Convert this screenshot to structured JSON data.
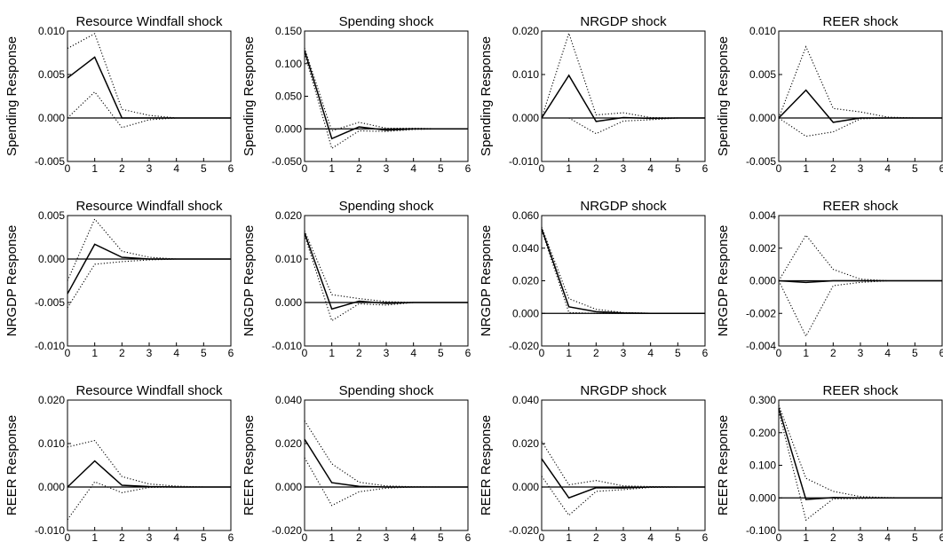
{
  "chart_data": [
    {
      "type": "line",
      "title": "Resource Windfall shock",
      "ylabel": "Spending Response",
      "xlim": [
        0,
        6
      ],
      "ylim": [
        -0.005,
        0.01
      ],
      "xticks": [
        "0",
        "1",
        "2",
        "3",
        "4",
        "5",
        "6"
      ],
      "yticks": [
        {
          "v": -0.005,
          "t": "-0.005"
        },
        {
          "v": 0,
          "t": "0.000"
        },
        {
          "v": 0.005,
          "t": "0.005"
        },
        {
          "v": 0.01,
          "t": "0.010"
        }
      ],
      "x": [
        0,
        1,
        2,
        3,
        4,
        5,
        6
      ],
      "series": [
        {
          "style": "solid",
          "values": [
            0.0046,
            0.007,
            0.0,
            0.0,
            0.0,
            0.0,
            0.0
          ]
        },
        {
          "style": "dotted",
          "values": [
            0.008,
            0.0097,
            0.001,
            0.0003,
            0.0,
            0.0,
            0.0
          ]
        },
        {
          "style": "dotted",
          "values": [
            0.0,
            0.003,
            -0.0011,
            -0.0002,
            0.0,
            0.0,
            0.0
          ]
        }
      ]
    },
    {
      "type": "line",
      "title": "Spending shock",
      "ylabel": "Spending Response",
      "xlim": [
        0,
        6
      ],
      "ylim": [
        -0.05,
        0.15
      ],
      "xticks": [
        "0",
        "1",
        "2",
        "3",
        "4",
        "5",
        "6"
      ],
      "yticks": [
        {
          "v": -0.05,
          "t": "-0.050"
        },
        {
          "v": 0,
          "t": "0.000"
        },
        {
          "v": 0.05,
          "t": "0.050"
        },
        {
          "v": 0.1,
          "t": "0.100"
        },
        {
          "v": 0.15,
          "t": "0.150"
        }
      ],
      "x": [
        0,
        1,
        2,
        3,
        4,
        5,
        6
      ],
      "series": [
        {
          "style": "solid",
          "values": [
            0.12,
            -0.015,
            0.003,
            -0.002,
            0.0,
            0.0,
            0.0
          ]
        },
        {
          "style": "dotted",
          "values": [
            0.124,
            -0.003,
            0.01,
            0.001,
            0.001,
            0.0,
            0.0
          ]
        },
        {
          "style": "dotted",
          "values": [
            0.116,
            -0.03,
            -0.003,
            -0.004,
            -0.001,
            0.0,
            0.0
          ]
        }
      ]
    },
    {
      "type": "line",
      "title": "NRGDP shock",
      "ylabel": "Spending Response",
      "xlim": [
        0,
        6
      ],
      "ylim": [
        -0.01,
        0.02
      ],
      "xticks": [
        "0",
        "1",
        "2",
        "3",
        "4",
        "5",
        "6"
      ],
      "yticks": [
        {
          "v": -0.01,
          "t": "-0.010"
        },
        {
          "v": 0,
          "t": "0.000"
        },
        {
          "v": 0.01,
          "t": "0.010"
        },
        {
          "v": 0.02,
          "t": "0.020"
        }
      ],
      "x": [
        0,
        1,
        2,
        3,
        4,
        5,
        6
      ],
      "series": [
        {
          "style": "solid",
          "values": [
            0.0,
            0.0098,
            -0.0008,
            0.0001,
            -0.0001,
            0.0,
            0.0
          ]
        },
        {
          "style": "dotted",
          "values": [
            0.0,
            0.0195,
            0.0007,
            0.0012,
            0.0001,
            0.0,
            0.0
          ]
        },
        {
          "style": "dotted",
          "values": [
            0.0,
            0.0,
            -0.0036,
            -0.0007,
            -0.0004,
            0.0,
            0.0
          ]
        }
      ]
    },
    {
      "type": "line",
      "title": "REER shock",
      "ylabel": "Spending Response",
      "xlim": [
        0,
        6
      ],
      "ylim": [
        -0.005,
        0.01
      ],
      "xticks": [
        "0",
        "1",
        "2",
        "3",
        "4",
        "5",
        "6"
      ],
      "yticks": [
        {
          "v": -0.005,
          "t": "-0.005"
        },
        {
          "v": 0,
          "t": "0.000"
        },
        {
          "v": 0.005,
          "t": "0.005"
        },
        {
          "v": 0.01,
          "t": "0.010"
        }
      ],
      "x": [
        0,
        1,
        2,
        3,
        4,
        5,
        6
      ],
      "series": [
        {
          "style": "solid",
          "values": [
            0.0,
            0.0032,
            -0.0005,
            0.0,
            0.0,
            0.0,
            0.0
          ]
        },
        {
          "style": "dotted",
          "values": [
            0.0,
            0.0082,
            0.0011,
            0.0007,
            0.0001,
            0.0,
            0.0
          ]
        },
        {
          "style": "dotted",
          "values": [
            0.0,
            -0.0021,
            -0.0016,
            -0.0001,
            0.0,
            0.0,
            0.0
          ]
        }
      ]
    },
    {
      "type": "line",
      "title": "Resource Windfall shock",
      "ylabel": "NRGDP Response",
      "xlim": [
        0,
        6
      ],
      "ylim": [
        -0.01,
        0.005
      ],
      "xticks": [
        "0",
        "1",
        "2",
        "3",
        "4",
        "5",
        "6"
      ],
      "yticks": [
        {
          "v": -0.01,
          "t": "-0.010"
        },
        {
          "v": -0.005,
          "t": "-0.005"
        },
        {
          "v": 0,
          "t": "0.000"
        },
        {
          "v": 0.005,
          "t": "0.005"
        }
      ],
      "x": [
        0,
        1,
        2,
        3,
        4,
        5,
        6
      ],
      "series": [
        {
          "style": "solid",
          "values": [
            -0.004,
            0.0017,
            0.0002,
            0.0,
            0.0,
            0.0,
            0.0
          ]
        },
        {
          "style": "dotted",
          "values": [
            -0.0025,
            0.0046,
            0.0009,
            0.0002,
            0.0,
            0.0,
            0.0
          ]
        },
        {
          "style": "dotted",
          "values": [
            -0.0056,
            -0.0006,
            -0.0003,
            -0.0001,
            0.0,
            0.0,
            0.0
          ]
        }
      ]
    },
    {
      "type": "line",
      "title": "Spending shock",
      "ylabel": "NRGDP Response",
      "xlim": [
        0,
        6
      ],
      "ylim": [
        -0.01,
        0.02
      ],
      "xticks": [
        "0",
        "1",
        "2",
        "3",
        "4",
        "5",
        "6"
      ],
      "yticks": [
        {
          "v": -0.01,
          "t": "-0.010"
        },
        {
          "v": 0,
          "t": "0.000"
        },
        {
          "v": 0.01,
          "t": "0.010"
        },
        {
          "v": 0.02,
          "t": "0.020"
        }
      ],
      "x": [
        0,
        1,
        2,
        3,
        4,
        5,
        6
      ],
      "series": [
        {
          "style": "solid",
          "values": [
            0.016,
            -0.0015,
            0.0003,
            -0.0002,
            0.0,
            0.0,
            0.0
          ]
        },
        {
          "style": "dotted",
          "values": [
            0.0165,
            0.0018,
            0.0009,
            0.0002,
            0.0,
            0.0,
            0.0
          ]
        },
        {
          "style": "dotted",
          "values": [
            0.0155,
            -0.0042,
            -0.0003,
            -0.0006,
            0.0,
            0.0,
            0.0
          ]
        }
      ]
    },
    {
      "type": "line",
      "title": "NRGDP shock",
      "ylabel": "NRGDP Response",
      "xlim": [
        0,
        6
      ],
      "ylim": [
        -0.02,
        0.06
      ],
      "xticks": [
        "0",
        "1",
        "2",
        "3",
        "4",
        "5",
        "6"
      ],
      "yticks": [
        {
          "v": -0.02,
          "t": "-0.020"
        },
        {
          "v": 0,
          "t": "0.000"
        },
        {
          "v": 0.02,
          "t": "0.020"
        },
        {
          "v": 0.04,
          "t": "0.040"
        },
        {
          "v": 0.06,
          "t": "0.060"
        }
      ],
      "x": [
        0,
        1,
        2,
        3,
        4,
        5,
        6
      ],
      "series": [
        {
          "style": "solid",
          "values": [
            0.052,
            0.004,
            0.001,
            0.0003,
            0.0,
            0.0,
            0.0
          ]
        },
        {
          "style": "dotted",
          "values": [
            0.053,
            0.009,
            0.0025,
            0.0005,
            0.0001,
            0.0,
            0.0
          ]
        },
        {
          "style": "dotted",
          "values": [
            0.051,
            0.0005,
            0.0,
            0.0,
            0.0,
            0.0,
            0.0
          ]
        }
      ]
    },
    {
      "type": "line",
      "title": "REER shock",
      "ylabel": "NRGDP Response",
      "xlim": [
        0,
        6
      ],
      "ylim": [
        -0.004,
        0.004
      ],
      "xticks": [
        "0",
        "1",
        "2",
        "3",
        "4",
        "5",
        "6"
      ],
      "yticks": [
        {
          "v": -0.004,
          "t": "-0.004"
        },
        {
          "v": -0.002,
          "t": "-0.002"
        },
        {
          "v": 0,
          "t": "0.000"
        },
        {
          "v": 0.002,
          "t": "0.002"
        },
        {
          "v": 0.004,
          "t": "0.004"
        }
      ],
      "x": [
        0,
        1,
        2,
        3,
        4,
        5,
        6
      ],
      "series": [
        {
          "style": "solid",
          "values": [
            0.0,
            -0.0001,
            0.0,
            0.0,
            0.0,
            0.0,
            0.0
          ]
        },
        {
          "style": "dotted",
          "values": [
            0.0,
            0.0028,
            0.0007,
            0.0001,
            0.0,
            0.0,
            0.0
          ]
        },
        {
          "style": "dotted",
          "values": [
            0.0,
            -0.0034,
            -0.0003,
            -0.0001,
            0.0,
            0.0,
            0.0
          ]
        }
      ]
    },
    {
      "type": "line",
      "title": "Resource Windfall shock",
      "ylabel": "REER Response",
      "xlim": [
        0,
        6
      ],
      "ylim": [
        -0.01,
        0.02
      ],
      "xticks": [
        "0",
        "1",
        "2",
        "3",
        "4",
        "5",
        "6"
      ],
      "yticks": [
        {
          "v": -0.01,
          "t": "-0.010"
        },
        {
          "v": 0,
          "t": "0.000"
        },
        {
          "v": 0.01,
          "t": "0.010"
        },
        {
          "v": 0.02,
          "t": "0.020"
        }
      ],
      "x": [
        0,
        1,
        2,
        3,
        4,
        5,
        6
      ],
      "series": [
        {
          "style": "solid",
          "values": [
            0.0,
            0.006,
            0.0004,
            0.0001,
            0.0,
            0.0,
            0.0
          ]
        },
        {
          "style": "dotted",
          "values": [
            0.0092,
            0.0107,
            0.0024,
            0.0007,
            0.0002,
            0.0,
            0.0
          ]
        },
        {
          "style": "dotted",
          "values": [
            -0.0075,
            0.0012,
            -0.0013,
            -0.0001,
            0.0,
            0.0,
            0.0
          ]
        }
      ]
    },
    {
      "type": "line",
      "title": "Spending shock",
      "ylabel": "REER Response",
      "xlim": [
        0,
        6
      ],
      "ylim": [
        -0.02,
        0.04
      ],
      "xticks": [
        "0",
        "1",
        "2",
        "3",
        "4",
        "5",
        "6"
      ],
      "yticks": [
        {
          "v": -0.02,
          "t": "-0.020"
        },
        {
          "v": 0,
          "t": "0.000"
        },
        {
          "v": 0.02,
          "t": "0.020"
        },
        {
          "v": 0.04,
          "t": "0.040"
        }
      ],
      "x": [
        0,
        1,
        2,
        3,
        4,
        5,
        6
      ],
      "series": [
        {
          "style": "solid",
          "values": [
            0.022,
            0.002,
            0.0003,
            0.0,
            0.0,
            0.0,
            0.0
          ]
        },
        {
          "style": "dotted",
          "values": [
            0.0305,
            0.0107,
            0.0022,
            0.0005,
            0.0001,
            0.0,
            0.0
          ]
        },
        {
          "style": "dotted",
          "values": [
            0.0135,
            -0.0085,
            -0.0022,
            -0.0005,
            0.0,
            0.0,
            0.0
          ]
        }
      ]
    },
    {
      "type": "line",
      "title": "NRGDP shock",
      "ylabel": "REER Response",
      "xlim": [
        0,
        6
      ],
      "ylim": [
        -0.02,
        0.04
      ],
      "xticks": [
        "0",
        "1",
        "2",
        "3",
        "4",
        "5",
        "6"
      ],
      "yticks": [
        {
          "v": -0.02,
          "t": "-0.020"
        },
        {
          "v": 0,
          "t": "0.000"
        },
        {
          "v": 0.02,
          "t": "0.020"
        },
        {
          "v": 0.04,
          "t": "0.040"
        }
      ],
      "x": [
        0,
        1,
        2,
        3,
        4,
        5,
        6
      ],
      "series": [
        {
          "style": "solid",
          "values": [
            0.013,
            -0.005,
            -0.0003,
            -0.0004,
            0.0,
            0.0,
            0.0
          ]
        },
        {
          "style": "dotted",
          "values": [
            0.021,
            0.001,
            0.003,
            0.0005,
            0.0002,
            0.0,
            0.0
          ]
        },
        {
          "style": "dotted",
          "values": [
            0.005,
            -0.013,
            -0.002,
            -0.0012,
            -0.0002,
            0.0,
            0.0
          ]
        }
      ]
    },
    {
      "type": "line",
      "title": "REER shock",
      "ylabel": "REER Response",
      "xlim": [
        0,
        6
      ],
      "ylim": [
        -0.1,
        0.3
      ],
      "xticks": [
        "0",
        "1",
        "2",
        "3",
        "4",
        "5",
        "6"
      ],
      "yticks": [
        {
          "v": -0.1,
          "t": "-0.100"
        },
        {
          "v": 0,
          "t": "0.000"
        },
        {
          "v": 0.1,
          "t": "0.100"
        },
        {
          "v": 0.2,
          "t": "0.200"
        },
        {
          "v": 0.3,
          "t": "0.300"
        }
      ],
      "x": [
        0,
        1,
        2,
        3,
        4,
        5,
        6
      ],
      "series": [
        {
          "style": "solid",
          "values": [
            0.275,
            -0.005,
            0.001,
            0.0,
            0.0,
            0.0,
            0.0
          ]
        },
        {
          "style": "dotted",
          "values": [
            0.285,
            0.06,
            0.02,
            0.004,
            0.001,
            0.0,
            0.0
          ]
        },
        {
          "style": "dotted",
          "values": [
            0.265,
            -0.068,
            -0.003,
            -0.002,
            0.0,
            0.0,
            0.0
          ]
        }
      ]
    }
  ]
}
